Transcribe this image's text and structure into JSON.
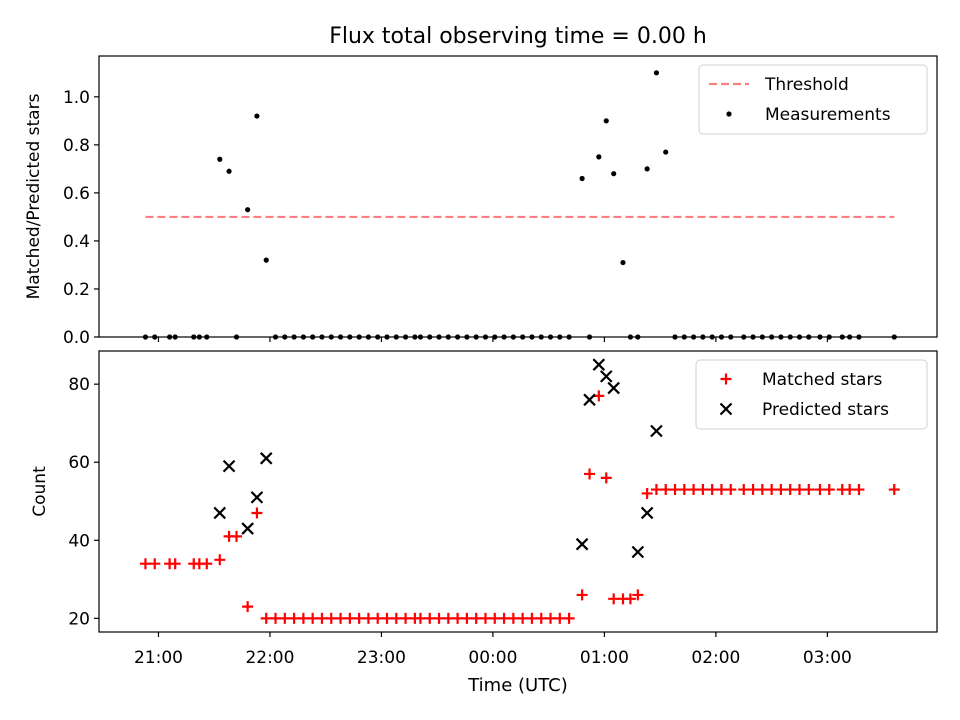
{
  "title": "Flux total observing time = 0.00 h",
  "xlabel": "Time (UTC)",
  "x_ticks": [
    "21:00",
    "22:00",
    "23:00",
    "00:00",
    "01:00",
    "02:00",
    "03:00"
  ],
  "colors": {
    "threshold": "#ff7f7f",
    "measurement": "#000000",
    "matched": "#ff0000",
    "predicted": "#000000"
  },
  "chart_data": [
    {
      "type": "scatter",
      "ylabel": "Matched/Predicted stars",
      "xlim": [
        "20:28",
        "03:59"
      ],
      "ylim": [
        0,
        1.17
      ],
      "y_ticks": [
        "0.0",
        "0.2",
        "0.4",
        "0.6",
        "0.8",
        "1.0"
      ],
      "legend": {
        "placement": "top-right",
        "entries": [
          "Threshold",
          "Measurements"
        ]
      },
      "series": [
        {
          "name": "Threshold",
          "style": "dashed-line",
          "points": [
            [
              "20:53",
              0.5
            ],
            [
              "03:36",
              0.5
            ]
          ]
        },
        {
          "name": "Measurements",
          "style": "dot",
          "points": [
            [
              "20:53",
              0.0
            ],
            [
              "20:58",
              0.0
            ],
            [
              "21:06",
              0.0
            ],
            [
              "21:09",
              0.0
            ],
            [
              "21:19",
              0.0
            ],
            [
              "21:22",
              0.0
            ],
            [
              "21:26",
              0.0
            ],
            [
              "21:33",
              0.74
            ],
            [
              "21:38",
              0.69
            ],
            [
              "21:42",
              0.0
            ],
            [
              "21:48",
              0.53
            ],
            [
              "21:53",
              0.92
            ],
            [
              "21:58",
              0.32
            ],
            [
              "22:03",
              0.0
            ],
            [
              "22:08",
              0.0
            ],
            [
              "22:13",
              0.0
            ],
            [
              "22:18",
              0.0
            ],
            [
              "22:23",
              0.0
            ],
            [
              "22:28",
              0.0
            ],
            [
              "22:33",
              0.0
            ],
            [
              "22:38",
              0.0
            ],
            [
              "22:43",
              0.0
            ],
            [
              "22:48",
              0.0
            ],
            [
              "22:53",
              0.0
            ],
            [
              "22:58",
              0.0
            ],
            [
              "23:03",
              0.0
            ],
            [
              "23:08",
              0.0
            ],
            [
              "23:13",
              0.0
            ],
            [
              "23:18",
              0.0
            ],
            [
              "23:21",
              0.0
            ],
            [
              "23:26",
              0.0
            ],
            [
              "23:31",
              0.0
            ],
            [
              "23:36",
              0.0
            ],
            [
              "23:41",
              0.0
            ],
            [
              "23:46",
              0.0
            ],
            [
              "23:51",
              0.0
            ],
            [
              "23:56",
              0.0
            ],
            [
              "00:01",
              0.0
            ],
            [
              "00:06",
              0.0
            ],
            [
              "00:11",
              0.0
            ],
            [
              "00:16",
              0.0
            ],
            [
              "00:21",
              0.0
            ],
            [
              "00:26",
              0.0
            ],
            [
              "00:31",
              0.0
            ],
            [
              "00:36",
              0.0
            ],
            [
              "00:41",
              0.0
            ],
            [
              "00:48",
              0.66
            ],
            [
              "00:52",
              0.0
            ],
            [
              "00:57",
              0.75
            ],
            [
              "01:01",
              0.9
            ],
            [
              "01:05",
              0.68
            ],
            [
              "01:10",
              0.31
            ],
            [
              "01:14",
              0.0
            ],
            [
              "01:18",
              0.0
            ],
            [
              "01:23",
              0.7
            ],
            [
              "01:28",
              1.1
            ],
            [
              "01:33",
              0.77
            ],
            [
              "01:38",
              0.0
            ],
            [
              "01:43",
              0.0
            ],
            [
              "01:48",
              0.0
            ],
            [
              "01:53",
              0.0
            ],
            [
              "01:58",
              0.0
            ],
            [
              "02:03",
              0.0
            ],
            [
              "02:08",
              0.0
            ],
            [
              "02:15",
              0.0
            ],
            [
              "02:20",
              0.0
            ],
            [
              "02:25",
              0.0
            ],
            [
              "02:30",
              0.0
            ],
            [
              "02:35",
              0.0
            ],
            [
              "02:40",
              0.0
            ],
            [
              "02:45",
              0.0
            ],
            [
              "02:50",
              0.0
            ],
            [
              "02:56",
              0.0
            ],
            [
              "03:01",
              0.0
            ],
            [
              "03:08",
              0.0
            ],
            [
              "03:12",
              0.0
            ],
            [
              "03:17",
              0.0
            ],
            [
              "03:36",
              0.0
            ]
          ]
        }
      ]
    },
    {
      "type": "scatter",
      "ylabel": "Count",
      "xlim": [
        "20:28",
        "03:59"
      ],
      "ylim": [
        16.5,
        88.5
      ],
      "y_ticks": [
        "20",
        "40",
        "60",
        "80"
      ],
      "legend": {
        "placement": "top-right",
        "entries": [
          "Matched stars",
          "Predicted stars"
        ]
      },
      "series": [
        {
          "name": "Matched stars",
          "style": "plus",
          "points": [
            [
              "20:53",
              34
            ],
            [
              "20:58",
              34
            ],
            [
              "21:06",
              34
            ],
            [
              "21:09",
              34
            ],
            [
              "21:19",
              34
            ],
            [
              "21:22",
              34
            ],
            [
              "21:26",
              34
            ],
            [
              "21:33",
              35
            ],
            [
              "21:38",
              41
            ],
            [
              "21:42",
              41
            ],
            [
              "21:48",
              23
            ],
            [
              "21:53",
              47
            ],
            [
              "21:58",
              20
            ],
            [
              "22:03",
              20
            ],
            [
              "22:08",
              20
            ],
            [
              "22:13",
              20
            ],
            [
              "22:18",
              20
            ],
            [
              "22:23",
              20
            ],
            [
              "22:28",
              20
            ],
            [
              "22:33",
              20
            ],
            [
              "22:38",
              20
            ],
            [
              "22:43",
              20
            ],
            [
              "22:48",
              20
            ],
            [
              "22:53",
              20
            ],
            [
              "22:58",
              20
            ],
            [
              "23:03",
              20
            ],
            [
              "23:08",
              20
            ],
            [
              "23:13",
              20
            ],
            [
              "23:18",
              20
            ],
            [
              "23:21",
              20
            ],
            [
              "23:26",
              20
            ],
            [
              "23:31",
              20
            ],
            [
              "23:36",
              20
            ],
            [
              "23:41",
              20
            ],
            [
              "23:46",
              20
            ],
            [
              "23:51",
              20
            ],
            [
              "23:56",
              20
            ],
            [
              "00:01",
              20
            ],
            [
              "00:06",
              20
            ],
            [
              "00:11",
              20
            ],
            [
              "00:16",
              20
            ],
            [
              "00:21",
              20
            ],
            [
              "00:26",
              20
            ],
            [
              "00:31",
              20
            ],
            [
              "00:36",
              20
            ],
            [
              "00:41",
              20
            ],
            [
              "00:48",
              26
            ],
            [
              "00:52",
              57
            ],
            [
              "00:57",
              77
            ],
            [
              "01:01",
              56
            ],
            [
              "01:05",
              25
            ],
            [
              "01:10",
              25
            ],
            [
              "01:14",
              25
            ],
            [
              "01:18",
              26
            ],
            [
              "01:23",
              52
            ],
            [
              "01:28",
              53
            ],
            [
              "01:33",
              53
            ],
            [
              "01:38",
              53
            ],
            [
              "01:43",
              53
            ],
            [
              "01:48",
              53
            ],
            [
              "01:53",
              53
            ],
            [
              "01:58",
              53
            ],
            [
              "02:03",
              53
            ],
            [
              "02:08",
              53
            ],
            [
              "02:15",
              53
            ],
            [
              "02:20",
              53
            ],
            [
              "02:25",
              53
            ],
            [
              "02:30",
              53
            ],
            [
              "02:35",
              53
            ],
            [
              "02:40",
              53
            ],
            [
              "02:45",
              53
            ],
            [
              "02:50",
              53
            ],
            [
              "02:56",
              53
            ],
            [
              "03:01",
              53
            ],
            [
              "03:08",
              53
            ],
            [
              "03:12",
              53
            ],
            [
              "03:17",
              53
            ],
            [
              "03:36",
              53
            ]
          ]
        },
        {
          "name": "Predicted stars",
          "style": "x",
          "points": [
            [
              "21:33",
              47
            ],
            [
              "21:38",
              59
            ],
            [
              "21:48",
              43
            ],
            [
              "21:53",
              51
            ],
            [
              "21:58",
              61
            ],
            [
              "00:48",
              39
            ],
            [
              "00:52",
              76
            ],
            [
              "00:57",
              85
            ],
            [
              "01:01",
              82
            ],
            [
              "01:05",
              79
            ],
            [
              "01:18",
              37
            ],
            [
              "01:23",
              47
            ],
            [
              "01:28",
              68
            ]
          ]
        }
      ]
    }
  ]
}
